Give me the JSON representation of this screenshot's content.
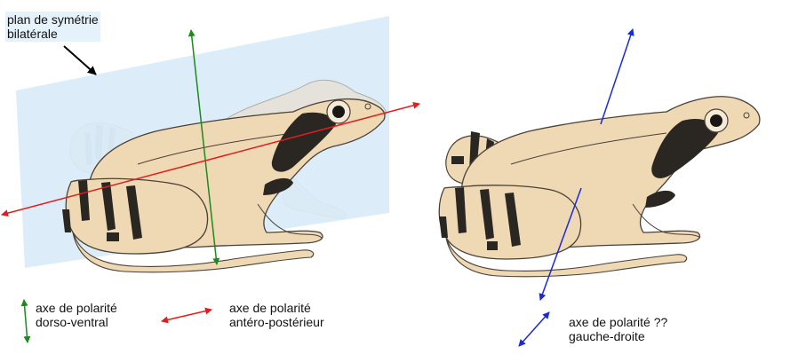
{
  "labels": {
    "plane": {
      "line1": "plan de symétrie",
      "line2": "bilatérale"
    },
    "dorso_ventral": {
      "line1": "axe de polarité",
      "line2": "dorso-ventral"
    },
    "antero_posterior": {
      "line1": "axe de polarité",
      "line2": "antéro-postérieur"
    },
    "left_right": {
      "line1": "axe de polarité ??",
      "line2": "gauche-droite"
    }
  },
  "colors": {
    "plane_fill": "#d9ecf8",
    "frog_skin": "#efd9b4",
    "frog_outline": "#4a4038",
    "stripe": "#2a2622",
    "green_axis": "#1c8a1c",
    "red_axis": "#e01e1e",
    "blue_axis": "#1a2ad8",
    "pointer": "#000000"
  }
}
